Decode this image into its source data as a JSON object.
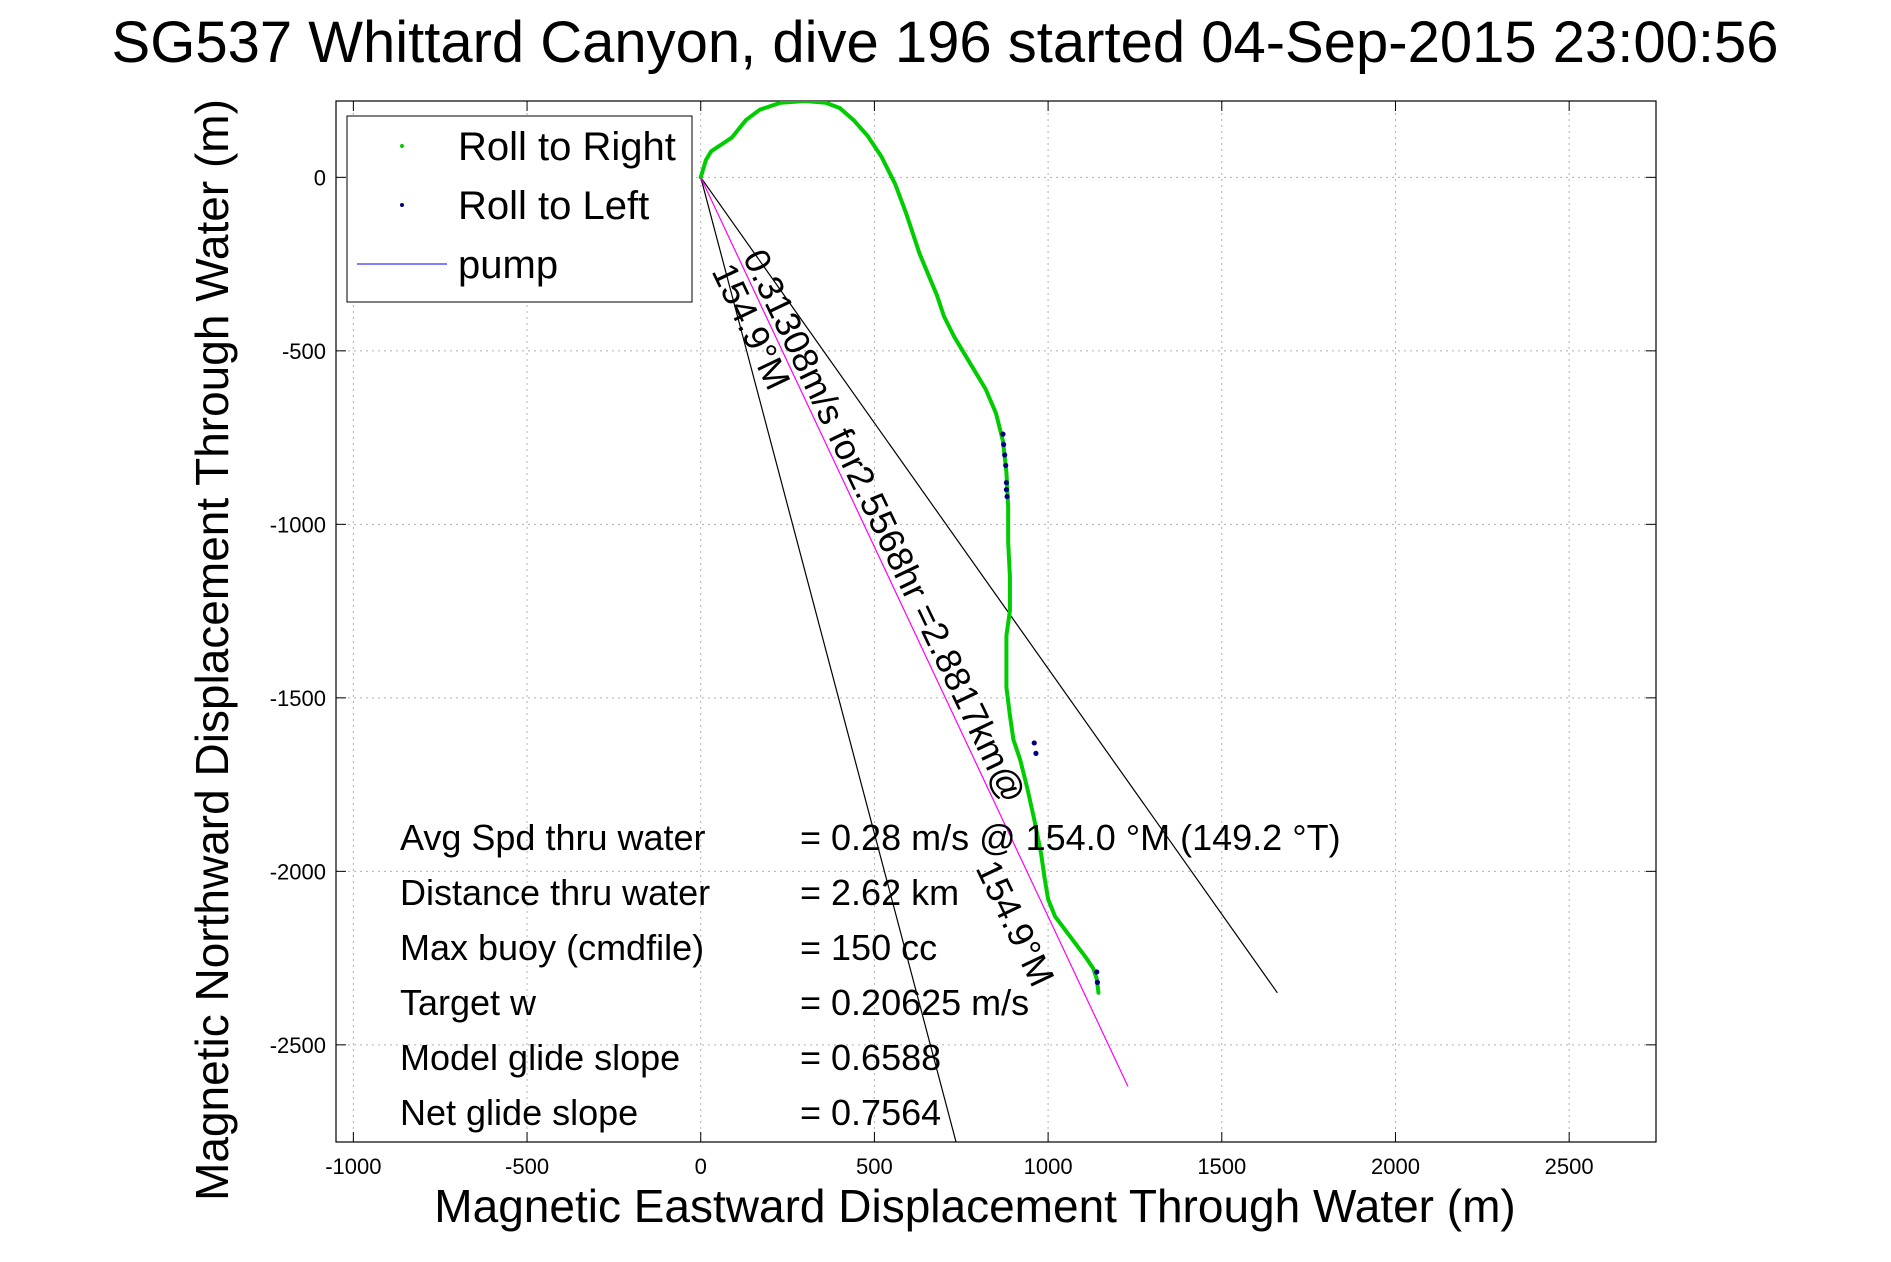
{
  "chart_data": {
    "type": "line",
    "title": "SG537 Whittard Canyon, dive 196 started 04-Sep-2015 23:00:56",
    "xlabel": "Magnetic Eastward Displacement Through Water (m)",
    "ylabel": "Magnetic Northward Displacement Through Water (m)",
    "xlim": [
      -1050,
      2750
    ],
    "ylim": [
      -2780,
      220
    ],
    "xticks": [
      -1000,
      -500,
      0,
      500,
      1000,
      1500,
      2000,
      2500
    ],
    "yticks": [
      0,
      -500,
      -1000,
      -1500,
      -2000,
      -2500
    ],
    "grid": true,
    "legend": {
      "placement": "top-left",
      "entries": [
        {
          "label": "Roll to Right",
          "color": "#00cc00",
          "style": "dot"
        },
        {
          "label": "Roll to Left",
          "color": "#000080",
          "style": "dot"
        },
        {
          "label": "pump",
          "color": "#3333ff",
          "style": "line"
        }
      ]
    },
    "series": [
      {
        "name": "Roll to Right",
        "color": "#00cc00",
        "x": [
          0,
          15,
          30,
          60,
          90,
          110,
          130,
          170,
          230,
          300,
          360,
          400,
          440,
          480,
          520,
          560,
          590,
          630,
          680,
          700,
          730,
          760,
          790,
          820,
          850,
          870,
          880,
          885,
          885,
          890,
          890,
          880,
          880,
          880,
          890,
          900,
          920,
          940,
          960,
          980,
          990,
          1000,
          1020,
          1050,
          1080,
          1110,
          1130,
          1140,
          1145
        ],
        "y": [
          0,
          50,
          75,
          95,
          115,
          140,
          165,
          195,
          215,
          220,
          215,
          200,
          165,
          120,
          60,
          -20,
          -100,
          -220,
          -340,
          -400,
          -460,
          -510,
          -560,
          -610,
          -680,
          -760,
          -850,
          -950,
          -1050,
          -1150,
          -1250,
          -1320,
          -1400,
          -1470,
          -1550,
          -1620,
          -1680,
          -1760,
          -1850,
          -1950,
          -2020,
          -2080,
          -2130,
          -2170,
          -2210,
          -2250,
          -2280,
          -2310,
          -2350
        ]
      },
      {
        "name": "Roll to Left",
        "color": "#000080",
        "x": [
          870,
          872,
          875,
          878,
          880,
          880,
          882,
          960,
          965,
          1140,
          1142
        ],
        "y": [
          -740,
          -770,
          -800,
          -830,
          -880,
          -900,
          -920,
          -1630,
          -1660,
          -2290,
          -2320
        ]
      },
      {
        "name": "",
        "color": "#ff00ff",
        "x": [
          0,
          1230
        ],
        "y": [
          0,
          -2620
        ]
      }
    ],
    "reference_lines": [
      {
        "color": "#000000",
        "x": [
          0,
          1660
        ],
        "y": [
          0,
          -2350
        ]
      },
      {
        "color": "#000000",
        "x": [
          0,
          735
        ],
        "y": [
          0,
          -2780
        ]
      }
    ],
    "annotations": [
      {
        "text": "0.31308m/s for2.5568hr =2.8817km@",
        "x": 120,
        "y": -230,
        "angle_deg": 64.5
      },
      {
        "text": "154.9°M",
        "x": 30,
        "y": -270,
        "angle_deg": 64.5
      },
      {
        "text": "154.9°M",
        "x": 790,
        "y": -1990,
        "angle_deg": 64.5
      }
    ],
    "stats": [
      {
        "label": "Avg Spd thru water",
        "value": "=  0.28 m/s @ 154.0 °M (149.2 °T)"
      },
      {
        "label": "Distance thru water",
        "value": "=  2.62 km"
      },
      {
        "label": "Max buoy (cmdfile)",
        "value": "= 150 cc"
      },
      {
        "label": "Target w",
        "value": "= 0.20625 m/s"
      },
      {
        "label": "Model glide slope",
        "value": "= 0.6588"
      },
      {
        "label": "Net glide slope",
        "value": "= 0.7564"
      }
    ]
  }
}
